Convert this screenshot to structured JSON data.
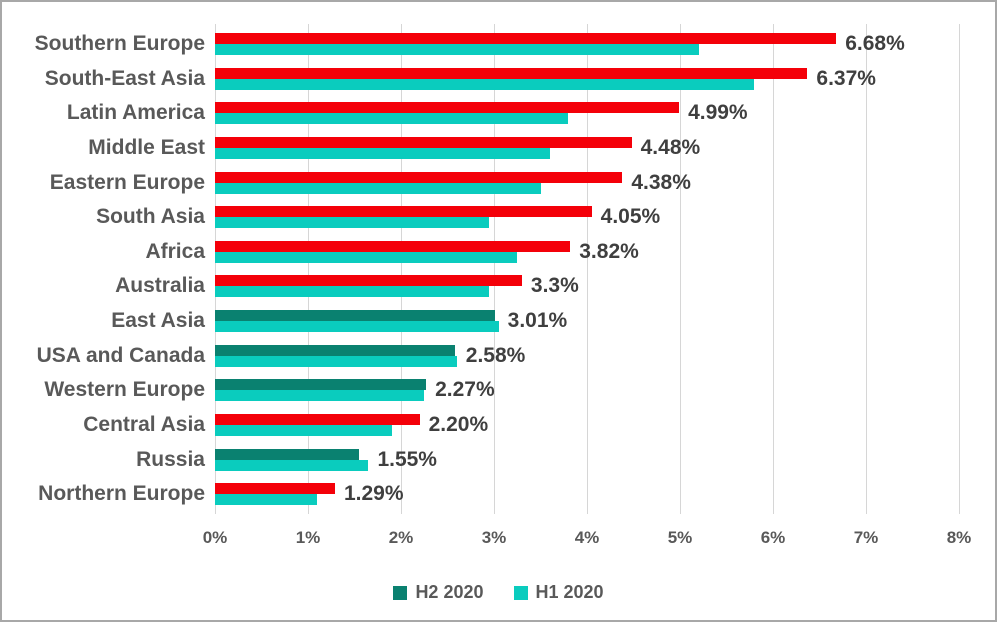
{
  "colors": {
    "increase_red": "#f40009",
    "h2_teal": "#0a8170",
    "h1_cyan": "#0accbe",
    "gridline": "#d6d6d6",
    "category_label": "#595959",
    "value_label": "#3f3f3f",
    "frame_border": "#a8a8a8"
  },
  "chart_data": {
    "type": "bar",
    "orientation": "horizontal",
    "title": "",
    "xlabel": "",
    "ylabel": "",
    "xlim": [
      0,
      8
    ],
    "grid": true,
    "legend_position": "bottom",
    "categories": [
      "Southern Europe",
      "South-East Asia",
      "Latin America",
      "Middle East",
      "Eastern Europe",
      "South Asia",
      "Africa",
      "Australia",
      "East Asia",
      "USA and Canada",
      "Western Europe",
      "Central Asia",
      "Russia",
      "Northern Europe"
    ],
    "series": [
      {
        "name": "H2 2020",
        "values": [
          6.68,
          6.37,
          4.99,
          4.48,
          4.38,
          4.05,
          3.82,
          3.3,
          3.01,
          2.58,
          2.27,
          2.2,
          1.55,
          1.29
        ],
        "data_labels": [
          "6.68%",
          "6.37%",
          "4.99%",
          "4.48%",
          "4.38%",
          "4.05%",
          "3.82%",
          "3.3%",
          "3.01%",
          "2.58%",
          "2.27%",
          "2.20%",
          "1.55%",
          "1.29%"
        ],
        "bar_color_keys": [
          "red",
          "red",
          "red",
          "red",
          "red",
          "red",
          "red",
          "red",
          "teal",
          "teal",
          "teal",
          "red",
          "teal",
          "red"
        ]
      },
      {
        "name": "H1 2020",
        "values": [
          5.2,
          5.8,
          3.8,
          3.6,
          3.5,
          2.95,
          3.25,
          2.95,
          3.05,
          2.6,
          2.25,
          1.9,
          1.65,
          1.1
        ]
      }
    ],
    "x_ticks": [
      "0%",
      "1%",
      "2%",
      "3%",
      "4%",
      "5%",
      "6%",
      "7%",
      "8%"
    ],
    "legend": [
      {
        "label": "H2 2020",
        "color_key": "h2_teal"
      },
      {
        "label": "H1 2020",
        "color_key": "h1_cyan"
      }
    ]
  }
}
